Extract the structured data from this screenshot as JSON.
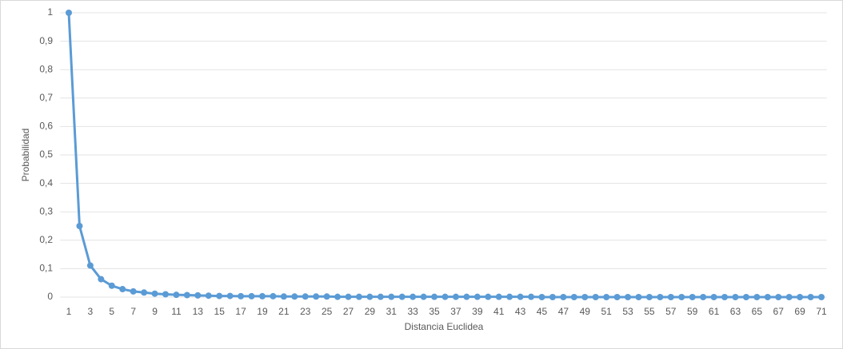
{
  "chart_data": {
    "type": "line",
    "x_label": "Distancia Euclidea",
    "y_label": "Probabilidad",
    "categories": [
      1,
      null,
      3,
      null,
      5,
      null,
      7,
      null,
      9,
      null,
      11,
      null,
      13,
      null,
      15,
      null,
      17,
      null,
      19,
      null,
      21,
      null,
      23,
      null,
      25,
      null,
      27,
      null,
      29,
      null,
      31,
      null,
      33,
      null,
      35,
      null,
      37,
      null,
      39,
      null,
      41,
      null,
      43,
      null,
      45,
      null,
      47,
      null,
      49,
      null,
      51,
      null,
      53,
      null,
      55,
      null,
      57,
      null,
      59,
      null,
      61,
      null,
      63,
      null,
      65,
      null,
      67,
      null,
      69,
      null,
      71
    ],
    "series": [
      {
        "color": "#5b9bd5",
        "values": [
          1,
          0.25,
          0.111,
          0.063,
          0.04,
          0.028,
          0.02,
          0.016,
          0.012,
          0.01,
          0.008,
          0.007,
          0.006,
          0.005,
          0.004,
          0.004,
          0.003,
          0.003,
          0.003,
          0.003,
          0.002,
          0.002,
          0.002,
          0.002,
          0.002,
          0.001,
          0.001,
          0.001,
          0.001,
          0.001,
          0.001,
          0.001,
          0.001,
          0.001,
          0.001,
          0.001,
          0.001,
          0.001,
          0.001,
          0.001,
          0.001,
          0.001,
          0.001,
          0.001,
          0,
          0,
          0,
          0,
          0,
          0,
          0,
          0,
          0,
          0,
          0,
          0,
          0,
          0,
          0,
          0,
          0,
          0,
          0,
          0,
          0,
          0,
          0,
          0,
          0,
          0,
          0
        ]
      }
    ],
    "ylim": [
      0,
      1
    ],
    "yticks": [
      0,
      {
        "value": 0.1,
        "label": "0,1"
      },
      {
        "value": 0.2,
        "label": "0,2"
      },
      {
        "value": 0.3,
        "label": "0,3"
      },
      {
        "value": 0.4,
        "label": "0,4"
      },
      {
        "value": 0.5,
        "label": "0,5"
      },
      {
        "value": 0.6,
        "label": "0,6"
      },
      {
        "value": 0.7,
        "label": "0,7"
      },
      {
        "value": 0.8,
        "label": "0,8"
      },
      {
        "value": 0.9,
        "label": "0,9"
      },
      1
    ],
    "grid": true
  }
}
